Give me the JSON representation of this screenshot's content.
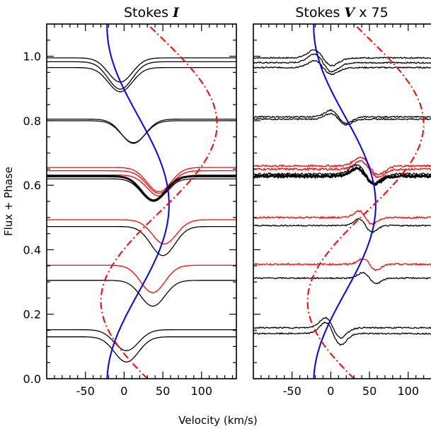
{
  "chart_data": [
    {
      "type": "line",
      "title_text": "Stokes ",
      "title_symbol": "I",
      "title_suffix": "",
      "xlabel": "Velocity (km/s)",
      "ylabel": "Flux + Phase",
      "xlim": [
        -100,
        145
      ],
      "ylim": [
        0,
        1.1
      ],
      "xticks": [
        -50,
        0,
        50,
        100
      ],
      "yticks": [
        0.0,
        0.2,
        0.4,
        0.6,
        0.8,
        1.0
      ],
      "ytick_labels": [
        "0.0",
        "0.2",
        "0.4",
        "0.6",
        "0.8",
        "1.0"
      ],
      "series": [
        {
          "color": "#000000",
          "kind": "absorption",
          "base": 0.995,
          "center": -5,
          "depth": 0.075,
          "width": 22
        },
        {
          "color": "#000000",
          "kind": "absorption",
          "base": 0.983,
          "center": -5,
          "depth": 0.085,
          "width": 22
        },
        {
          "color": "#000000",
          "kind": "absorption",
          "base": 0.965,
          "center": -5,
          "depth": 0.075,
          "width": 22
        },
        {
          "color": "#000000",
          "kind": "absorption",
          "base": 0.805,
          "center": 12,
          "depth": 0.075,
          "width": 22
        },
        {
          "color": "#000000",
          "kind": "absorption",
          "base": 0.8,
          "center": 12,
          "depth": 0.068,
          "width": 22
        },
        {
          "color": "#ff0000",
          "kind": "absorption",
          "base": 0.655,
          "center": 45,
          "depth": 0.075,
          "width": 22
        },
        {
          "color": "#ff0000",
          "kind": "absorption",
          "base": 0.645,
          "center": 45,
          "depth": 0.07,
          "width": 22
        },
        {
          "color": "#ff0000",
          "kind": "absorption",
          "base": 0.632,
          "center": 45,
          "depth": 0.065,
          "width": 22
        },
        {
          "color": "#000000",
          "kind": "absorption",
          "base": 0.628,
          "center": 38,
          "depth": 0.075,
          "width": 22,
          "thick": true
        },
        {
          "color": "#000000",
          "kind": "absorption",
          "base": 0.62,
          "center": 38,
          "depth": 0.07,
          "width": 22
        },
        {
          "color": "#ff0000",
          "kind": "absorption",
          "base": 0.493,
          "center": 52,
          "depth": 0.075,
          "width": 22
        },
        {
          "color": "#000000",
          "kind": "absorption",
          "base": 0.472,
          "center": 50,
          "depth": 0.09,
          "width": 22
        },
        {
          "color": "#ff0000",
          "kind": "absorption",
          "base": 0.352,
          "center": 37,
          "depth": 0.085,
          "width": 22
        },
        {
          "color": "#000000",
          "kind": "absorption",
          "base": 0.305,
          "center": 37,
          "depth": 0.08,
          "width": 22
        },
        {
          "color": "#000000",
          "kind": "absorption",
          "base": 0.152,
          "center": 3,
          "depth": 0.065,
          "width": 22
        },
        {
          "color": "#000000",
          "kind": "absorption",
          "base": 0.13,
          "center": 3,
          "depth": 0.078,
          "width": 22
        }
      ],
      "velocity_curve": {
        "color": "#0000ff",
        "amplitude": 40,
        "offset": 18,
        "phase0": -0.01,
        "cycles": 1.1
      },
      "velocity_curve_dashed": {
        "color": "#ff0000",
        "amplitude": 75,
        "offset": 45,
        "phase0": 0.24,
        "cycles": 1.1
      }
    },
    {
      "type": "line",
      "title_text": "Stokes ",
      "title_symbol": "V",
      "title_suffix": " x 75",
      "xlabel": "Velocity (km/s)",
      "ylabel": "",
      "xlim": [
        -100,
        145
      ],
      "ylim": [
        0,
        1.1
      ],
      "xticks": [
        -50,
        0,
        50,
        100
      ],
      "yticks": [
        0.0,
        0.2,
        0.4,
        0.6,
        0.8,
        1.0
      ],
      "ytick_labels": [],
      "series": [
        {
          "color": "#000000",
          "kind": "zeeman",
          "base": 0.995,
          "center": -10,
          "amp": 0.035,
          "width": 16,
          "noise": 0.004
        },
        {
          "color": "#000000",
          "kind": "zeeman",
          "base": 0.98,
          "center": -10,
          "amp": 0.04,
          "width": 16,
          "noise": 0.004
        },
        {
          "color": "#000000",
          "kind": "zeeman",
          "base": 0.965,
          "center": -10,
          "amp": 0.03,
          "width": 16,
          "noise": 0.004
        },
        {
          "color": "#000000",
          "kind": "zeeman",
          "base": 0.812,
          "center": 10,
          "amp": 0.03,
          "width": 14,
          "noise": 0.004
        },
        {
          "color": "#000000",
          "kind": "zeeman",
          "base": 0.805,
          "center": 10,
          "amp": 0.025,
          "width": 14,
          "noise": 0.004
        },
        {
          "color": "#ff0000",
          "kind": "zeeman",
          "base": 0.66,
          "center": 50,
          "amp": 0.04,
          "width": 16,
          "noise": 0.006
        },
        {
          "color": "#ff0000",
          "kind": "zeeman",
          "base": 0.65,
          "center": 50,
          "amp": 0.035,
          "width": 16,
          "noise": 0.006
        },
        {
          "color": "#000000",
          "kind": "zeeman",
          "base": 0.635,
          "center": 45,
          "amp": 0.04,
          "width": 16,
          "noise": 0.006
        },
        {
          "color": "#000000",
          "kind": "zeeman",
          "base": 0.628,
          "center": 45,
          "amp": 0.035,
          "width": 16,
          "noise": 0.006,
          "thick": true
        },
        {
          "color": "#ff0000",
          "kind": "zeeman",
          "base": 0.5,
          "center": 45,
          "amp": 0.03,
          "width": 12,
          "noise": 0.005
        },
        {
          "color": "#000000",
          "kind": "zeeman",
          "base": 0.475,
          "center": 45,
          "amp": 0.03,
          "width": 12,
          "noise": 0.004
        },
        {
          "color": "#ff0000",
          "kind": "zeeman",
          "base": 0.355,
          "center": 50,
          "amp": 0.025,
          "width": 12,
          "noise": 0.005
        },
        {
          "color": "#000000",
          "kind": "zeeman",
          "base": 0.312,
          "center": 50,
          "amp": 0.025,
          "width": 12,
          "noise": 0.004
        },
        {
          "color": "#000000",
          "kind": "zeeman",
          "base": 0.158,
          "center": 3,
          "amp": 0.045,
          "width": 14,
          "noise": 0.004
        },
        {
          "color": "#000000",
          "kind": "zeeman",
          "base": 0.14,
          "center": 3,
          "amp": 0.05,
          "width": 14,
          "noise": 0.004
        }
      ],
      "velocity_curve": {
        "color": "#0000ff",
        "amplitude": 40,
        "offset": 18,
        "phase0": -0.01,
        "cycles": 1.1
      },
      "velocity_curve_dashed": {
        "color": "#ff0000",
        "amplitude": 75,
        "offset": 45,
        "phase0": 0.24,
        "cycles": 1.1
      }
    }
  ]
}
